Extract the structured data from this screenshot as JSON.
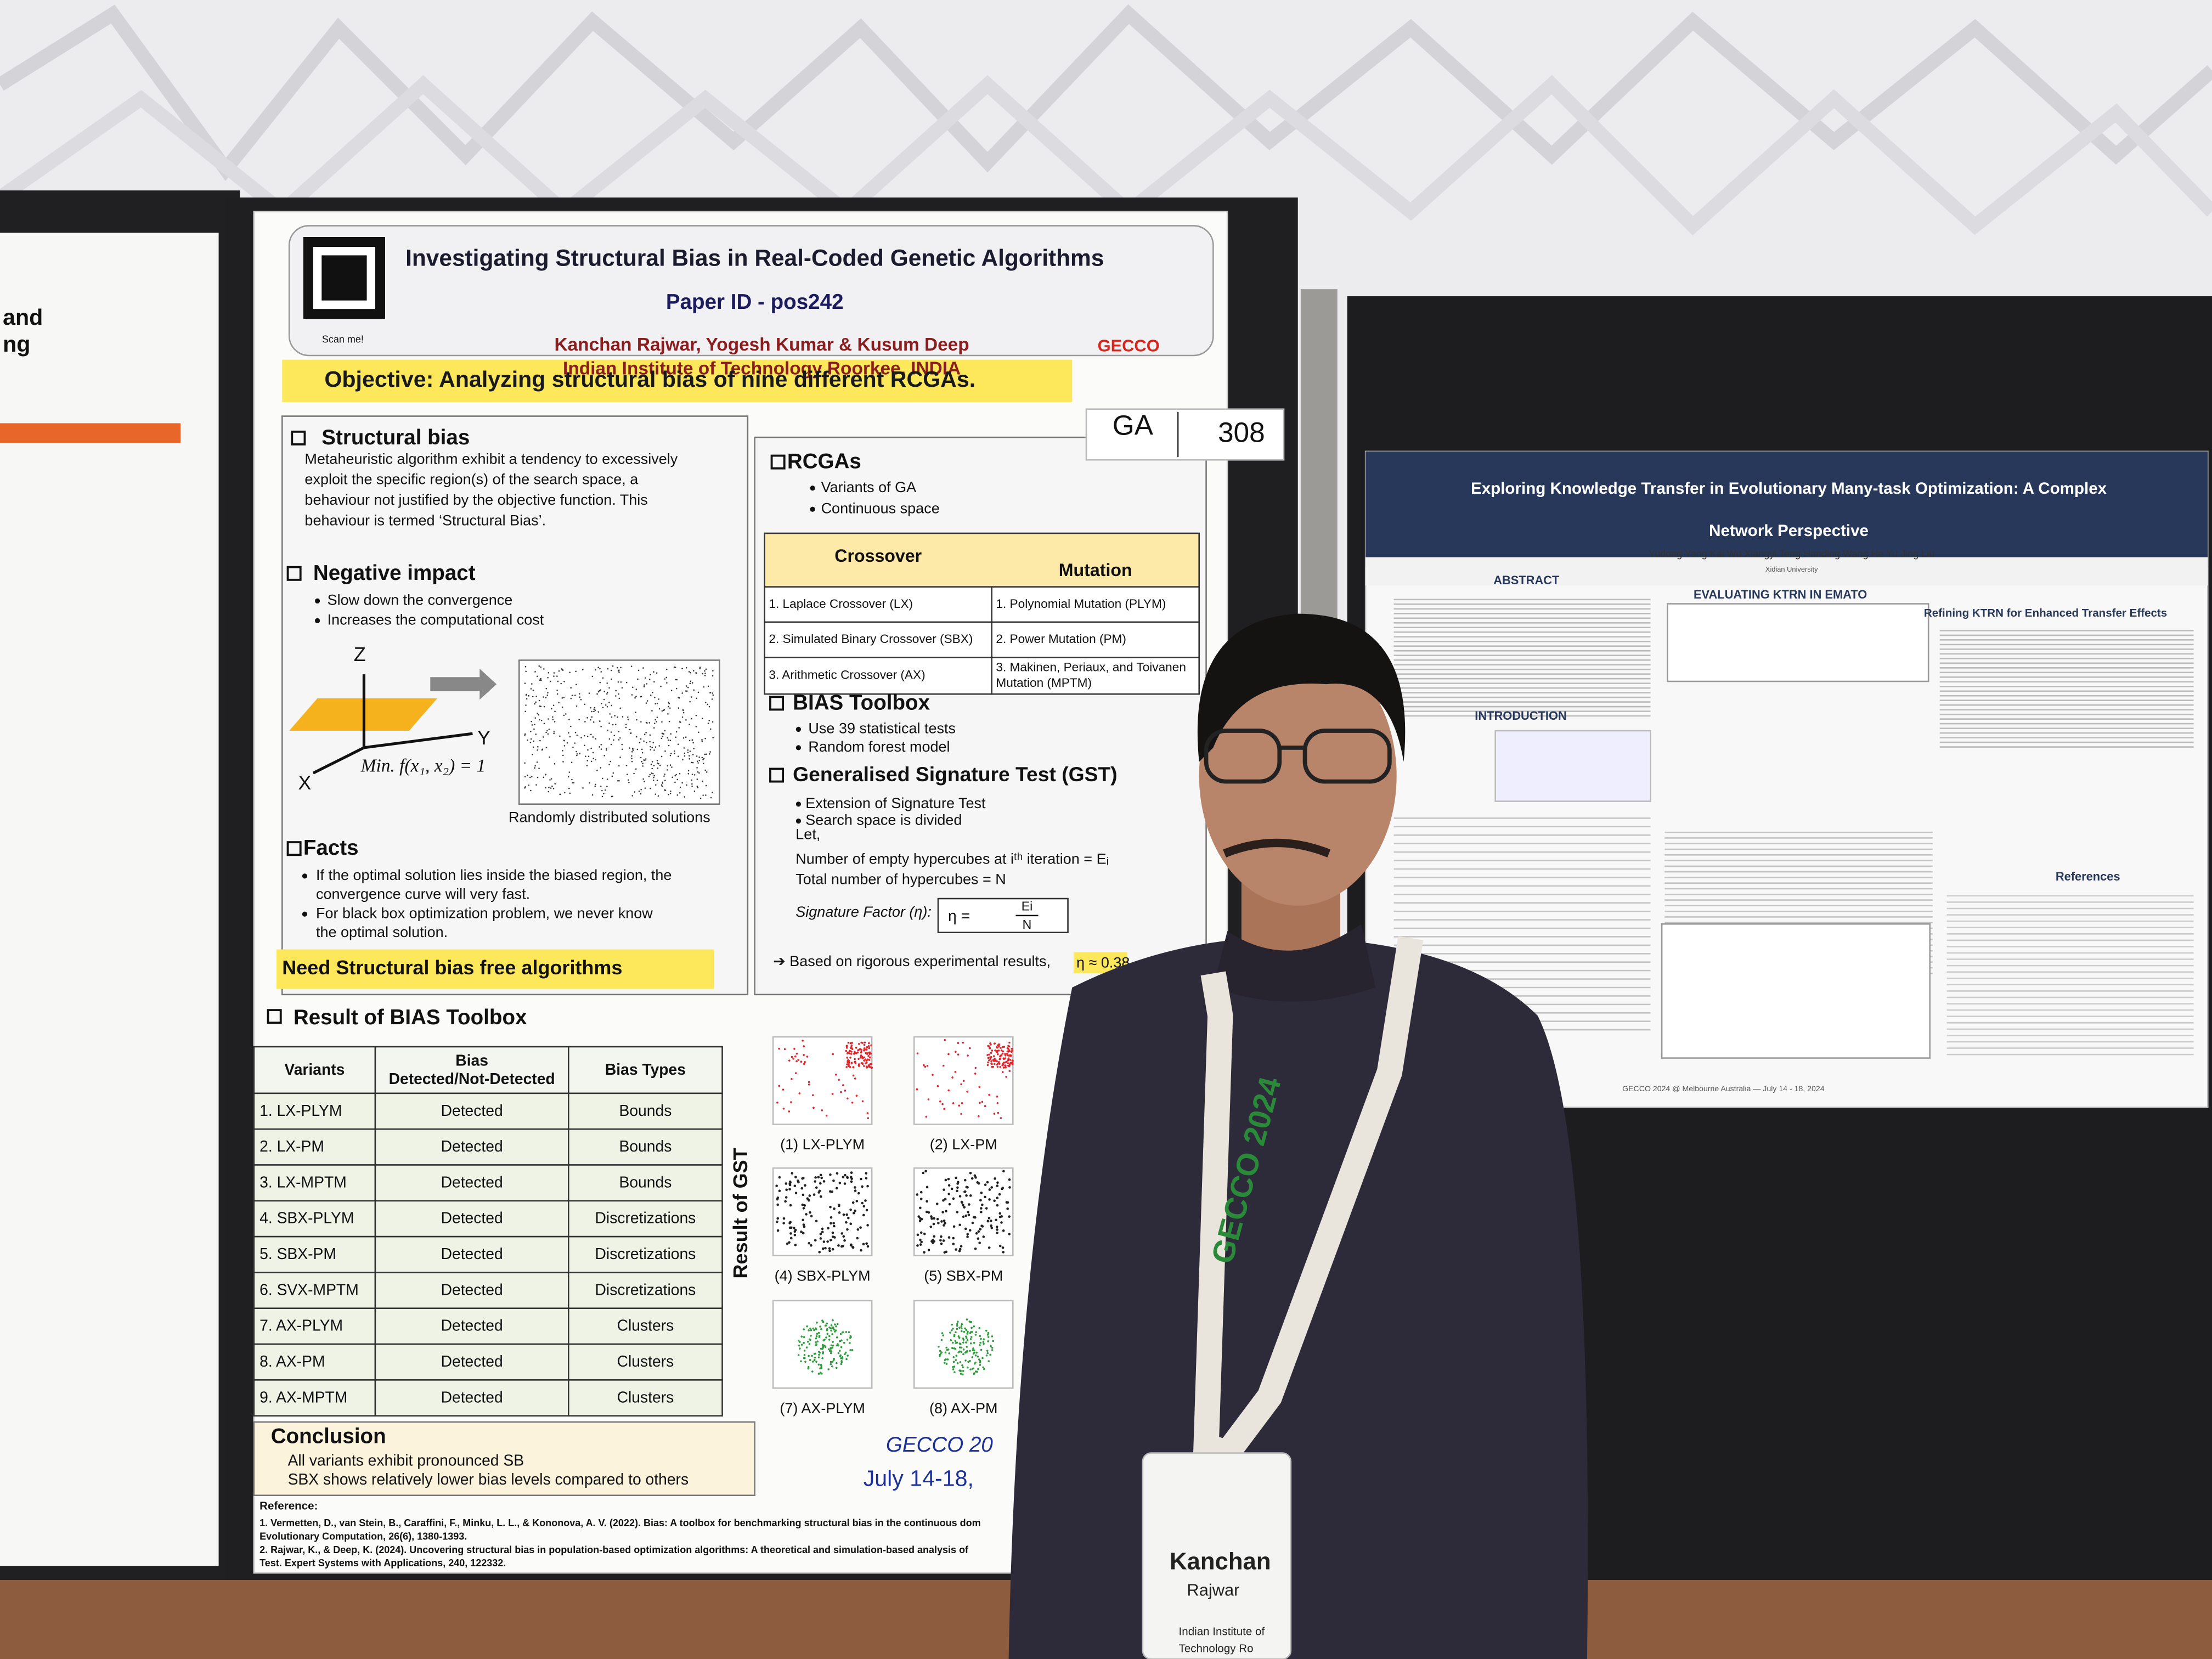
{
  "left_poster": {
    "fragments": [
      "and",
      "ng"
    ]
  },
  "poster": {
    "qr_caption": "Scan me!",
    "title": "Investigating Structural Bias in Real-Coded Genetic Algorithms",
    "paper_id": "Paper ID - pos242",
    "authors": "Kanchan Rajwar, Yogesh Kumar & Kusum Deep",
    "affiliation": "Indian Institute of Technology Roorkee, INDIA",
    "logo": "GECCO",
    "objective": "Objective:  Analyzing structural bias of nine different  RCGAs.",
    "structural_bias": {
      "heading": "Structural bias",
      "text": [
        "Metaheuristic algorithm exhibit a tendency to excessively",
        "exploit the specific region(s) of the search space, a",
        "behaviour not justified by the objective function.  This",
        "behaviour is termed ‘Structural Bias’."
      ]
    },
    "negative_impact": {
      "heading": "Negative impact",
      "bullets": [
        "Slow down the convergence",
        "Increases the computational cost"
      ]
    },
    "diagram": {
      "axes": [
        "Z",
        "Y",
        "X"
      ],
      "equation": "Min. f(x₁, x₂) = 1",
      "caption": "Randomly distributed solutions"
    },
    "facts": {
      "heading": "Facts",
      "bullets": [
        [
          "If the optimal solution lies inside the biased region, the",
          "convergence curve will very fast."
        ],
        [
          "For black box optimization problem, we never know",
          "the optimal solution."
        ]
      ],
      "highlight": "Need Structural bias free algorithms"
    },
    "rcgas": {
      "heading": "RCGAs",
      "bullets": [
        "Variants of GA",
        "Continuous space"
      ],
      "table": {
        "columns": [
          "Crossover",
          "Mutation"
        ],
        "rows": [
          [
            [
              "1. Laplace Crossover (LX)"
            ],
            [
              "1. Polynomial Mutation (PLYM)"
            ]
          ],
          [
            [
              "2. Simulated Binary Crossover (SBX)"
            ],
            [
              "2. Power Mutation (PM)"
            ]
          ],
          [
            [
              "3. Arithmetic Crossover (AX)"
            ],
            [
              "3. Makinen, Periaux, and Toivanen",
              "Mutation (MPTM)"
            ]
          ]
        ]
      }
    },
    "bias_toolbox": {
      "heading": "BIAS Toolbox",
      "bullets": [
        "Use 39 statistical tests",
        "Random forest model"
      ]
    },
    "gst": {
      "heading": "Generalised Signature Test (GST)",
      "bullets": [
        "Extension of Signature Test",
        "Search space is divided"
      ],
      "lines": [
        "Let,",
        "Number of empty hypercubes at iᵗʰ iteration = Eᵢ",
        "Total number of hypercubes = N"
      ],
      "factor": "Signature Factor (η):",
      "formula": {
        "lhs": "η =",
        "numerator": "Ei",
        "denominator": "N"
      },
      "result": "➔  Based on rigorous experimental results,",
      "result_value": "η ≈ 0.38"
    },
    "results": {
      "heading": "Result of BIAS Toolbox",
      "columns": [
        [
          "Variants"
        ],
        [
          "Bias",
          "Detected/Not-Detected"
        ],
        [
          "Bias Types"
        ]
      ],
      "rows": [
        [
          "1. LX-PLYM",
          "Detected",
          "Bounds"
        ],
        [
          "2. LX-PM",
          "Detected",
          "Bounds"
        ],
        [
          "3. LX-MPTM",
          "Detected",
          "Bounds"
        ],
        [
          "4. SBX-PLYM",
          "Detected",
          "Discretizations"
        ],
        [
          "5. SBX-PM",
          "Detected",
          "Discretizations"
        ],
        [
          "6. SVX-MPTM",
          "Detected",
          "Discretizations"
        ],
        [
          "7. AX-PLYM",
          "Detected",
          "Clusters"
        ],
        [
          "8. AX-PM",
          "Detected",
          "Clusters"
        ],
        [
          "9. AX-MPTM",
          "Detected",
          "Clusters"
        ]
      ]
    },
    "gst_results": {
      "heading": "Result of GST",
      "plots": [
        "(1) LX-PLYM",
        "(2) LX-PM",
        "(4) SBX-PLYM",
        "(5) SBX-PM",
        "(7) AX-PLYM",
        "(8) AX-PM"
      ]
    },
    "conclusion": {
      "heading": "Conclusion",
      "bullets": [
        "All variants exhibit pronounced SB",
        "SBX shows relatively lower bias levels compared to others"
      ]
    },
    "footer": [
      "GECCO 20",
      "July 14-18, "
    ],
    "references": {
      "heading": "Reference:",
      "items": [
        "1.  Vermetten, D., van Stein, B., Caraffini, F., Minku, L. L., & Kononova, A. V. (2022). Bias: A toolbox for benchmarking structural bias in the continuous dom",
        "     Evolutionary Computation, 26(6), 1380-1393.",
        "2.  Rajwar, K., & Deep, K. (2024). Uncovering structural bias in population-based optimization algorithms: A theoretical and simulation-based analysis of",
        "     Test. Expert Systems with Applications, 240, 122332."
      ]
    }
  },
  "board_number": [
    "GA",
    "308"
  ],
  "right_poster": {
    "title": [
      "Exploring Knowledge Transfer in Evolutionary Many-task Optimization: A Complex",
      "Network Perspective"
    ],
    "authors": "Yudong Yang    Kai Wu    Xiangyi Teng    Handing Wang    He Yu    Jing Liu",
    "institution": "Xidian University",
    "headings": [
      "ABSTRACT",
      "EVALUATING KTRN IN EMATO",
      "Refining KTRN for Enhanced Transfer Effects",
      "INTRODUCTION",
      "References"
    ],
    "footer": "GECCO 2024 @ Melbourne Australia — July 14 - 18, 2024"
  },
  "lanyard": "GECCO 2024",
  "badge": {
    "lines": [
      "Kanchan",
      "Rajwar",
      "Indian Institute of",
      "Technology Ro"
    ]
  }
}
